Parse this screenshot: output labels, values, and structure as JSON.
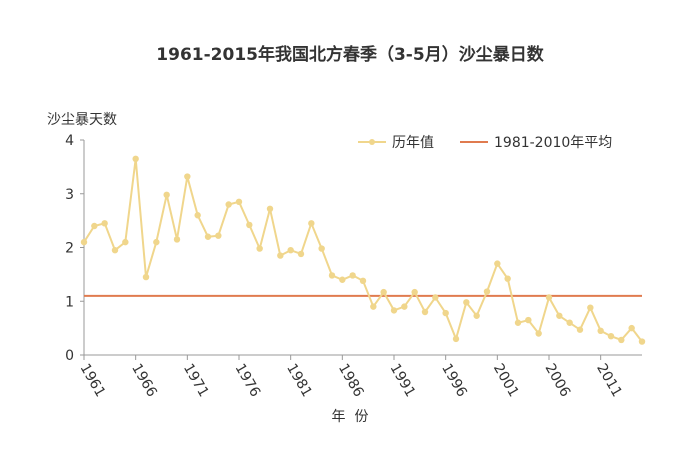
{
  "chart_data": {
    "type": "line",
    "title": "1961-2015年我国北方春季（3-5月）沙尘暴日数",
    "ylabel": "沙尘暴天数",
    "xlabel": "年  份",
    "ylim": [
      0,
      4
    ],
    "yticks": [
      0,
      1,
      2,
      3,
      4
    ],
    "xticks": [
      1961,
      1966,
      1971,
      1976,
      1981,
      1986,
      1991,
      1996,
      2001,
      2006,
      2011
    ],
    "xlim": [
      1961,
      2015
    ],
    "legend_position": "top-right",
    "grid": false,
    "series": [
      {
        "name": "历年值",
        "color": "#f0d68c",
        "x": [
          1961,
          1962,
          1963,
          1964,
          1965,
          1966,
          1967,
          1968,
          1969,
          1970,
          1971,
          1972,
          1973,
          1974,
          1975,
          1976,
          1977,
          1978,
          1979,
          1980,
          1981,
          1982,
          1983,
          1984,
          1985,
          1986,
          1987,
          1988,
          1989,
          1990,
          1991,
          1992,
          1993,
          1994,
          1995,
          1996,
          1997,
          1998,
          1999,
          2000,
          2001,
          2002,
          2003,
          2004,
          2005,
          2006,
          2007,
          2008,
          2009,
          2010,
          2011,
          2012,
          2013,
          2014,
          2015
        ],
        "values": [
          2.1,
          2.4,
          2.45,
          1.95,
          2.1,
          3.65,
          1.45,
          2.1,
          2.98,
          2.15,
          3.32,
          2.6,
          2.2,
          2.22,
          2.8,
          2.85,
          2.42,
          1.98,
          2.72,
          1.85,
          1.95,
          1.88,
          2.45,
          1.98,
          1.48,
          1.4,
          1.48,
          1.38,
          0.9,
          1.17,
          0.83,
          0.9,
          1.17,
          0.8,
          1.07,
          0.78,
          0.3,
          0.98,
          0.73,
          1.18,
          1.7,
          1.42,
          0.6,
          0.65,
          0.4,
          1.07,
          0.73,
          0.6,
          0.47,
          0.88,
          0.45,
          0.35,
          0.28,
          0.5,
          0.25
        ]
      },
      {
        "name": "1981-2010年平均",
        "color": "#e07b4f",
        "constant": 1.1
      }
    ]
  }
}
